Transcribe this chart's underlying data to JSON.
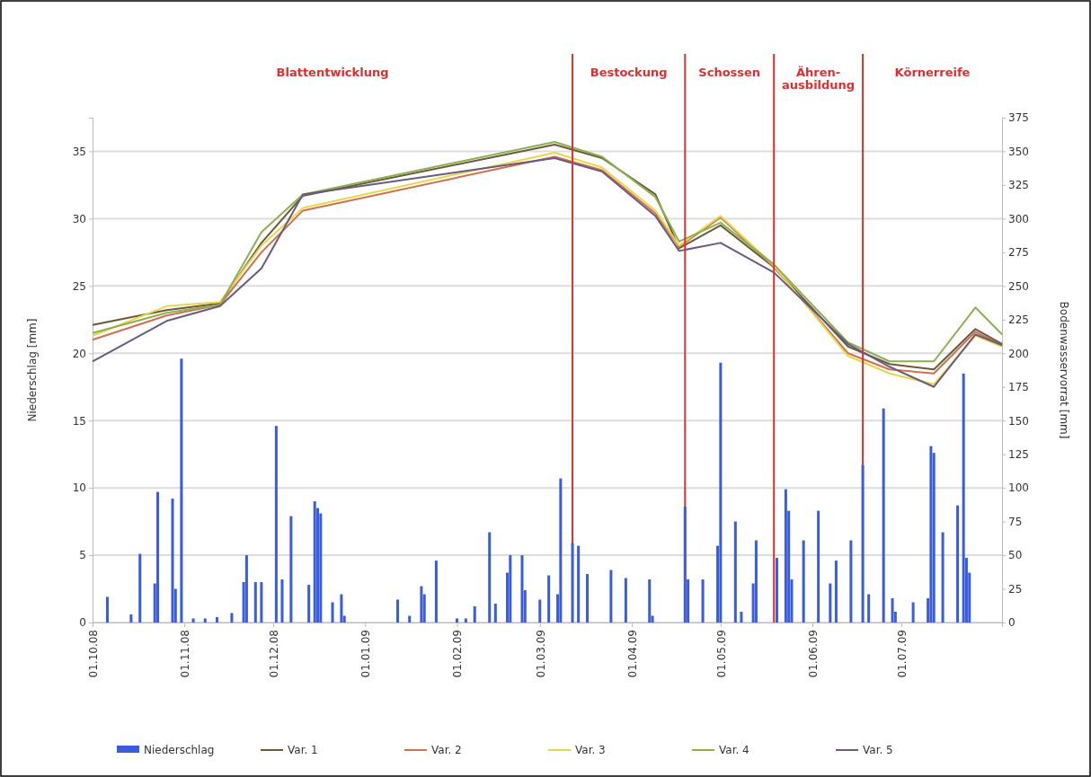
{
  "chart_data": {
    "type": "line",
    "ylabel": "Niederschlag [mm]",
    "y2label": "Bodenwasservorrat [mm]",
    "xlim": [
      "2008-10-01",
      "2009-08-04"
    ],
    "xticks": [
      {
        "value": "2008-10-01",
        "label": "01.10.08"
      },
      {
        "value": "2008-11-01",
        "label": "01.11.08"
      },
      {
        "value": "2008-12-01",
        "label": "01.12.08"
      },
      {
        "value": "2009-01-01",
        "label": "01.01.09"
      },
      {
        "value": "2009-02-01",
        "label": "01.02.09"
      },
      {
        "value": "2009-03-01",
        "label": "01.03.09"
      },
      {
        "value": "2009-04-01",
        "label": "01.04.09"
      },
      {
        "value": "2009-05-01",
        "label": "01.05.09"
      },
      {
        "value": "2009-06-01",
        "label": "01.06.09"
      },
      {
        "value": "2009-07-01",
        "label": "01.07.09"
      }
    ],
    "ylim": [
      0,
      37.5
    ],
    "yticks": [
      0,
      5,
      10,
      15,
      20,
      25,
      30,
      35
    ],
    "y2lim": [
      0,
      375
    ],
    "y2ticks": [
      0,
      25,
      50,
      75,
      100,
      125,
      150,
      175,
      200,
      225,
      250,
      275,
      300,
      325,
      350,
      375
    ],
    "grid": "y",
    "legend": "bottom",
    "marker": "none",
    "line_style": "solid",
    "series": [
      {
        "name": "Niederschlag",
        "type": "bar",
        "color": "#3a5ce0",
        "x": [
          "2008-10-06",
          "2008-10-14",
          "2008-10-17",
          "2008-10-22",
          "2008-10-23",
          "2008-10-28",
          "2008-10-29",
          "2008-10-31",
          "2008-11-04",
          "2008-11-08",
          "2008-11-12",
          "2008-11-17",
          "2008-11-21",
          "2008-11-22",
          "2008-11-25",
          "2008-11-27",
          "2008-12-02",
          "2008-12-04",
          "2008-12-07",
          "2008-12-13",
          "2008-12-15",
          "2008-12-16",
          "2008-12-17",
          "2008-12-21",
          "2008-12-24",
          "2008-12-25",
          "2009-01-12",
          "2009-01-16",
          "2009-01-20",
          "2009-01-21",
          "2009-01-25",
          "2009-02-01",
          "2009-02-04",
          "2009-02-07",
          "2009-02-12",
          "2009-02-14",
          "2009-02-18",
          "2009-02-19",
          "2009-02-23",
          "2009-02-24",
          "2009-03-01",
          "2009-03-04",
          "2009-03-07",
          "2009-03-08",
          "2009-03-12",
          "2009-03-14",
          "2009-03-17",
          "2009-03-25",
          "2009-03-30",
          "2009-04-07",
          "2009-04-08",
          "2009-04-19",
          "2009-04-20",
          "2009-04-25",
          "2009-04-30",
          "2009-05-01",
          "2009-05-06",
          "2009-05-08",
          "2009-05-12",
          "2009-05-13",
          "2009-05-20",
          "2009-05-23",
          "2009-05-24",
          "2009-05-25",
          "2009-05-29",
          "2009-06-03",
          "2009-06-07",
          "2009-06-09",
          "2009-06-14",
          "2009-06-18",
          "2009-06-20",
          "2009-06-25",
          "2009-06-28",
          "2009-06-29",
          "2009-07-05",
          "2009-07-10",
          "2009-07-11",
          "2009-07-12",
          "2009-07-15",
          "2009-07-20",
          "2009-07-22",
          "2009-07-23",
          "2009-07-24"
        ],
        "values": [
          1.9,
          0.6,
          5.1,
          2.9,
          9.7,
          9.2,
          2.5,
          19.6,
          0.3,
          0.3,
          0.4,
          0.7,
          3.0,
          5.0,
          3.0,
          3.0,
          14.6,
          3.2,
          7.9,
          2.8,
          9.0,
          8.5,
          8.1,
          1.5,
          2.1,
          0.5,
          1.7,
          0.5,
          2.7,
          2.1,
          4.6,
          0.3,
          0.3,
          1.2,
          6.7,
          1.4,
          3.7,
          5.0,
          5.0,
          2.4,
          1.7,
          3.5,
          2.1,
          10.7,
          5.9,
          5.7,
          3.6,
          3.9,
          3.3,
          3.2,
          0.5,
          8.6,
          3.2,
          3.2,
          5.7,
          19.3,
          7.5,
          0.8,
          2.9,
          6.1,
          4.8,
          9.9,
          8.3,
          3.2,
          6.1,
          8.3,
          2.9,
          4.6,
          6.1,
          11.7,
          2.1,
          15.9,
          1.8,
          0.8,
          1.5,
          1.8,
          13.1,
          12.6,
          6.7,
          8.7,
          18.5,
          4.8,
          3.7
        ]
      },
      {
        "name": "Var. 1",
        "axis": "y2",
        "color": "#6b5a3a",
        "x": [
          "2008-10-01",
          "2008-10-26",
          "2008-11-13",
          "2008-11-27",
          "2008-12-11",
          "2009-03-06",
          "2009-03-22",
          "2009-04-09",
          "2009-04-17",
          "2009-05-01",
          "2009-05-19",
          "2009-06-13",
          "2009-06-27",
          "2009-07-12",
          "2009-07-26",
          "2009-08-04"
        ],
        "values": [
          221,
          232,
          237,
          282,
          317,
          355,
          345,
          318,
          278,
          295,
          264,
          205,
          192,
          188,
          218,
          207
        ]
      },
      {
        "name": "Var. 2",
        "axis": "y2",
        "color": "#d07050",
        "x": [
          "2008-10-01",
          "2008-10-26",
          "2008-11-13",
          "2008-11-27",
          "2008-12-11",
          "2009-03-06",
          "2009-03-22",
          "2009-04-09",
          "2009-04-17",
          "2009-05-01",
          "2009-05-19",
          "2009-06-13",
          "2009-06-27",
          "2009-07-12",
          "2009-07-26",
          "2009-08-04"
        ],
        "values": [
          210,
          228,
          236,
          275,
          306,
          346,
          336,
          304,
          279,
          301,
          264,
          200,
          188,
          185,
          216,
          206
        ]
      },
      {
        "name": "Var. 3",
        "axis": "y2",
        "color": "#e6d84a",
        "x": [
          "2008-10-01",
          "2008-10-26",
          "2008-11-13",
          "2008-11-27",
          "2008-12-11",
          "2009-03-06",
          "2009-03-22",
          "2009-04-09",
          "2009-04-17",
          "2009-05-01",
          "2009-05-19",
          "2009-06-13",
          "2009-06-27",
          "2009-07-12",
          "2009-07-26",
          "2009-08-04"
        ],
        "values": [
          213,
          235,
          238,
          280,
          308,
          349,
          338,
          306,
          280,
          302,
          265,
          198,
          185,
          177,
          213,
          205
        ]
      },
      {
        "name": "Var. 4",
        "axis": "y2",
        "color": "#8cb050",
        "x": [
          "2008-10-01",
          "2008-10-26",
          "2008-11-13",
          "2008-11-27",
          "2008-12-11",
          "2009-03-06",
          "2009-03-22",
          "2009-04-09",
          "2009-04-17",
          "2009-05-01",
          "2009-05-19",
          "2009-06-13",
          "2009-06-27",
          "2009-07-12",
          "2009-07-26",
          "2009-08-04"
        ],
        "values": [
          215,
          230,
          236,
          290,
          318,
          357,
          346,
          316,
          283,
          297,
          266,
          208,
          194,
          194,
          234,
          214
        ]
      },
      {
        "name": "Var. 5",
        "axis": "y2",
        "color": "#6a5a80",
        "x": [
          "2008-10-01",
          "2008-10-26",
          "2008-11-13",
          "2008-11-27",
          "2008-12-11",
          "2009-03-06",
          "2009-03-22",
          "2009-04-09",
          "2009-04-17",
          "2009-05-01",
          "2009-05-19",
          "2009-06-13",
          "2009-06-27",
          "2009-07-12",
          "2009-07-26",
          "2009-08-04"
        ],
        "values": [
          194,
          224,
          235,
          263,
          318,
          345,
          335,
          302,
          276,
          282,
          260,
          207,
          190,
          175,
          214,
          206
        ]
      }
    ],
    "ref_lines": [
      {
        "axis": "x",
        "value": "2009-03-12",
        "color": "#e03030"
      },
      {
        "axis": "x",
        "value": "2009-04-19",
        "color": "#e03030"
      },
      {
        "axis": "x",
        "value": "2009-05-19",
        "color": "#e03030"
      },
      {
        "axis": "x",
        "value": "2009-06-18",
        "color": "#e03030"
      }
    ],
    "annotations": [
      "Blattentwicklung",
      "Bestockung",
      "Schossen",
      "Ähren-\nausbildung",
      "Körnerreife"
    ]
  }
}
